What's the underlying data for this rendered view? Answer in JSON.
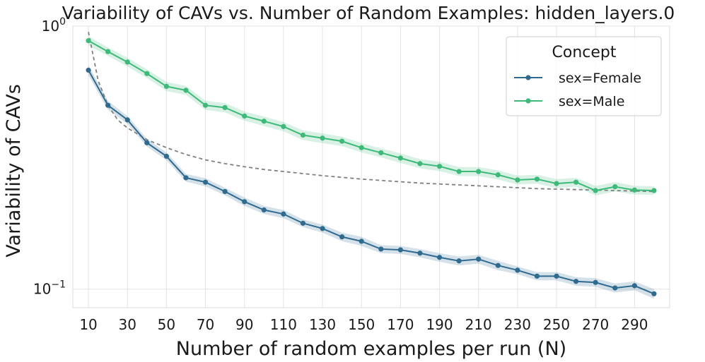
{
  "chart_data": {
    "type": "line",
    "title": "Variability of CAVs vs. Number of Random Examples: hidden_layers.0",
    "xlabel": "Number of random examples per run (N)",
    "ylabel": "Variability of CAVs",
    "yscale": "log",
    "ylim": [
      0.085,
      1.0
    ],
    "xlim": [
      2,
      308
    ],
    "y_tick_labels": [
      {
        "value": 1.0,
        "base": "10",
        "exp": "0"
      },
      {
        "value": 0.1,
        "base": "10",
        "exp": "−1"
      }
    ],
    "x_ticks": [
      10,
      30,
      50,
      70,
      90,
      110,
      130,
      150,
      170,
      190,
      210,
      230,
      250,
      270,
      290
    ],
    "x_tick_labels": [
      "10",
      "30",
      "50",
      "70",
      "90",
      "110",
      "130",
      "150",
      "170",
      "190",
      "210",
      "230",
      "250",
      "270",
      "290"
    ],
    "x": [
      10,
      20,
      30,
      40,
      50,
      60,
      70,
      80,
      90,
      100,
      110,
      120,
      130,
      140,
      150,
      160,
      170,
      180,
      190,
      200,
      210,
      220,
      230,
      240,
      250,
      260,
      270,
      280,
      290,
      300
    ],
    "series": [
      {
        "name": "sex=Female",
        "label": "sex=Female",
        "color": "#2f6a8f",
        "values": [
          0.68,
          0.5,
          0.44,
          0.36,
          0.32,
          0.265,
          0.255,
          0.235,
          0.215,
          0.2,
          0.193,
          0.178,
          0.17,
          0.158,
          0.152,
          0.142,
          0.141,
          0.137,
          0.132,
          0.128,
          0.13,
          0.123,
          0.118,
          0.112,
          0.112,
          0.107,
          0.106,
          0.101,
          0.103,
          0.096
        ],
        "band_halfwidth": [
          0.03,
          0.02,
          0.015,
          0.012,
          0.011,
          0.009,
          0.009,
          0.008,
          0.008,
          0.007,
          0.007,
          0.006,
          0.006,
          0.006,
          0.006,
          0.005,
          0.005,
          0.005,
          0.005,
          0.005,
          0.005,
          0.005,
          0.004,
          0.004,
          0.004,
          0.004,
          0.004,
          0.004,
          0.004,
          0.004
        ]
      },
      {
        "name": "sex=Male",
        "label": "sex=Male",
        "color": "#3dba7a",
        "values": [
          0.88,
          0.8,
          0.73,
          0.66,
          0.59,
          0.57,
          0.5,
          0.49,
          0.455,
          0.435,
          0.415,
          0.385,
          0.375,
          0.365,
          0.345,
          0.33,
          0.315,
          0.3,
          0.293,
          0.28,
          0.28,
          0.272,
          0.26,
          0.262,
          0.252,
          0.255,
          0.237,
          0.245,
          0.238,
          0.237
        ],
        "band_halfwidth": [
          0.035,
          0.03,
          0.028,
          0.025,
          0.024,
          0.022,
          0.02,
          0.02,
          0.018,
          0.018,
          0.017,
          0.016,
          0.016,
          0.015,
          0.014,
          0.013,
          0.013,
          0.012,
          0.012,
          0.011,
          0.011,
          0.011,
          0.01,
          0.01,
          0.01,
          0.01,
          0.01,
          0.01,
          0.009,
          0.009
        ]
      }
    ],
    "reference_curve": {
      "style": "dashed",
      "color": "#808080",
      "x": [
        10,
        15,
        20,
        25,
        30,
        40,
        50,
        60,
        70,
        80,
        90,
        100,
        110,
        120,
        130,
        140,
        150,
        160,
        170,
        180,
        190,
        200,
        210,
        220,
        230,
        240,
        250,
        260,
        270,
        280,
        290,
        300
      ],
      "values": [
        0.95,
        0.62,
        0.5,
        0.44,
        0.41,
        0.37,
        0.345,
        0.325,
        0.31,
        0.3,
        0.292,
        0.285,
        0.28,
        0.275,
        0.27,
        0.266,
        0.262,
        0.259,
        0.256,
        0.253,
        0.251,
        0.249,
        0.247,
        0.245,
        0.243,
        0.241,
        0.24,
        0.239,
        0.238,
        0.237,
        0.236,
        0.235
      ]
    },
    "legend": {
      "title": "Concept",
      "position": "top-right"
    },
    "grid": true
  }
}
